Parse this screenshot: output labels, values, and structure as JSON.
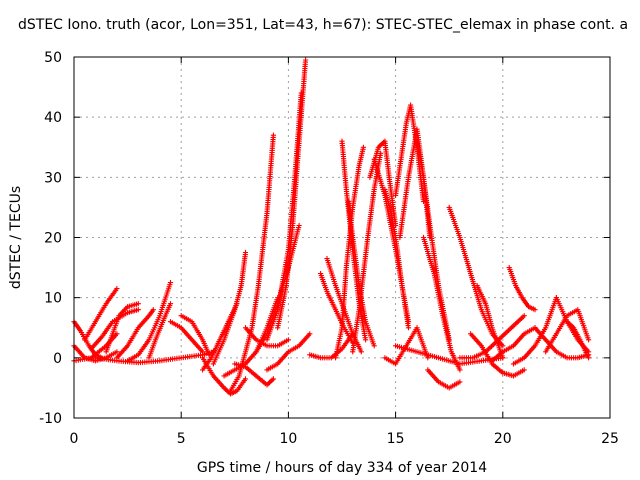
{
  "chart_data": {
    "type": "scatter",
    "title": "dSTEC Iono. truth (acor, Lon=351, Lat=43, h=67): STEC-STEC_elemax in phase cont. a",
    "xlabel": "GPS time / hours of day 334 of year 2014",
    "ylabel": "dSTEC  / TECUs",
    "xlim": [
      0,
      25
    ],
    "ylim": [
      -10,
      50
    ],
    "xticks": [
      "0",
      "5",
      "10",
      "15",
      "20",
      "25"
    ],
    "yticks": [
      "-10",
      "0",
      "10",
      "20",
      "30",
      "40",
      "50"
    ],
    "grid": true,
    "marker": "+",
    "color": "#ff0000",
    "series": [
      {
        "x": [
          0.0,
          0.3,
          0.7,
          1.0,
          1.3
        ],
        "y": [
          6.0,
          4.5,
          2.0,
          0.5,
          0.0
        ]
      },
      {
        "x": [
          0.0,
          0.5,
          1.0,
          1.5,
          2.0
        ],
        "y": [
          2.0,
          0.0,
          -0.5,
          0.0,
          1.0
        ]
      },
      {
        "x": [
          0.0,
          0.8,
          1.5,
          2.0
        ],
        "y": [
          -0.5,
          0.0,
          2.0,
          4.0
        ]
      },
      {
        "x": [
          0.5,
          1.0,
          1.5,
          2.0
        ],
        "y": [
          3.0,
          6.0,
          9.0,
          11.5
        ]
      },
      {
        "x": [
          0.8,
          1.3,
          1.8,
          2.5,
          3.0
        ],
        "y": [
          1.5,
          3.5,
          6.0,
          7.5,
          8.0
        ]
      },
      {
        "x": [
          1.5,
          1.8,
          2.1,
          2.5,
          3.0
        ],
        "y": [
          1.0,
          4.0,
          7.0,
          8.5,
          9.0
        ]
      },
      {
        "x": [
          2.0,
          2.5,
          3.0,
          3.5,
          3.7
        ],
        "y": [
          0.0,
          2.0,
          5.0,
          7.0,
          8.0
        ]
      },
      {
        "x": [
          2.5,
          3.0,
          3.5,
          4.0,
          4.5
        ],
        "y": [
          -0.5,
          0.5,
          3.0,
          7.0,
          12.5
        ]
      },
      {
        "x": [
          3.5,
          3.8,
          4.2,
          4.5
        ],
        "y": [
          0.0,
          3.0,
          6.5,
          9.0
        ]
      },
      {
        "x": [
          4.5,
          5.0,
          5.5,
          6.0
        ],
        "y": [
          6.0,
          5.0,
          3.0,
          1.0
        ]
      },
      {
        "x": [
          5.0,
          5.5,
          6.0,
          6.3
        ],
        "y": [
          7.0,
          6.0,
          3.0,
          0.5
        ]
      },
      {
        "x": [
          1.0,
          2.0,
          3.0,
          4.0,
          5.0,
          6.0,
          6.5
        ],
        "y": [
          0.0,
          -0.5,
          -0.8,
          -0.5,
          0.0,
          0.5,
          1.0
        ]
      },
      {
        "x": [
          6.0,
          6.5,
          7.0,
          7.3,
          7.6,
          8.0
        ],
        "y": [
          0.0,
          -3.0,
          -5.0,
          -6.0,
          -5.5,
          -3.5
        ]
      },
      {
        "x": [
          7.3,
          7.7,
          8.0,
          8.3,
          8.6,
          9.0,
          9.3
        ],
        "y": [
          -5.5,
          -3.0,
          1.0,
          5.0,
          12.0,
          24.0,
          37.0
        ]
      },
      {
        "x": [
          6.5,
          7.0,
          7.5,
          7.8,
          8.0
        ],
        "y": [
          -1.0,
          3.0,
          8.0,
          12.0,
          17.5
        ]
      },
      {
        "x": [
          6.0,
          6.4,
          6.8,
          7.2,
          7.6
        ],
        "y": [
          -2.0,
          0.0,
          3.0,
          6.0,
          9.0
        ]
      },
      {
        "x": [
          7.0,
          7.5,
          8.0,
          8.5,
          9.0,
          9.5
        ],
        "y": [
          -3.0,
          -2.0,
          -1.0,
          1.0,
          5.0,
          10.0
        ]
      },
      {
        "x": [
          7.5,
          8.0,
          8.5,
          9.0,
          9.3
        ],
        "y": [
          -1.0,
          -1.5,
          -3.0,
          -4.5,
          -3.5
        ]
      },
      {
        "x": [
          8.0,
          8.5,
          9.0,
          9.5,
          10.0
        ],
        "y": [
          5.0,
          3.0,
          2.0,
          2.0,
          3.0
        ]
      },
      {
        "x": [
          8.5,
          9.0,
          9.5,
          10.0,
          10.5
        ],
        "y": [
          1.0,
          4.0,
          9.0,
          15.0,
          22.0
        ]
      },
      {
        "x": [
          9.0,
          9.5,
          10.0,
          10.3,
          10.6
        ],
        "y": [
          3.0,
          8.0,
          18.0,
          30.0,
          44.0
        ]
      },
      {
        "x": [
          9.5,
          9.9,
          10.2,
          10.5,
          10.8
        ],
        "y": [
          5.0,
          12.0,
          22.0,
          36.0,
          49.5
        ]
      },
      {
        "x": [
          9.0,
          9.5,
          10.0,
          10.5,
          11.0
        ],
        "y": [
          -2.0,
          -1.0,
          1.0,
          2.0,
          4.0
        ]
      },
      {
        "x": [
          11.0,
          11.5,
          12.0,
          12.5,
          13.0
        ],
        "y": [
          0.5,
          0.0,
          0.0,
          1.5,
          4.0
        ]
      },
      {
        "x": [
          11.5,
          11.8,
          12.2,
          12.6,
          13.0
        ],
        "y": [
          14.0,
          11.0,
          8.0,
          5.0,
          2.5
        ]
      },
      {
        "x": [
          11.8,
          12.2,
          12.6,
          13.0,
          13.4
        ],
        "y": [
          16.5,
          12.0,
          8.0,
          4.0,
          1.0
        ]
      },
      {
        "x": [
          12.2,
          12.5,
          12.7,
          13.0,
          13.3,
          13.5
        ],
        "y": [
          0.0,
          5.0,
          15.0,
          25.0,
          32.0,
          35.0
        ]
      },
      {
        "x": [
          12.5,
          12.7,
          13.0,
          13.3,
          13.6
        ],
        "y": [
          36.0,
          28.0,
          18.0,
          9.0,
          3.0
        ]
      },
      {
        "x": [
          12.8,
          13.0,
          13.3,
          13.6,
          14.0
        ],
        "y": [
          26.0,
          20.0,
          12.0,
          6.0,
          2.0
        ]
      },
      {
        "x": [
          13.0,
          13.3,
          13.7,
          14.0,
          14.3
        ],
        "y": [
          1.0,
          8.0,
          20.0,
          28.0,
          34.0
        ]
      },
      {
        "x": [
          13.8,
          14.2,
          14.5,
          14.7,
          15.0
        ],
        "y": [
          30.0,
          35.0,
          36.0,
          30.0,
          22.0
        ]
      },
      {
        "x": [
          14.0,
          14.5,
          15.0,
          15.3,
          15.6
        ],
        "y": [
          33.0,
          27.0,
          18.0,
          12.0,
          6.0
        ]
      },
      {
        "x": [
          14.5,
          14.8,
          15.0,
          15.3,
          15.6
        ],
        "y": [
          28.0,
          24.0,
          20.0,
          12.0,
          5.0
        ]
      },
      {
        "x": [
          15.0,
          15.5,
          15.7,
          16.0,
          16.3
        ],
        "y": [
          27.0,
          39.0,
          42.0,
          35.0,
          26.0
        ]
      },
      {
        "x": [
          15.2,
          15.6,
          16.0,
          16.3,
          16.6
        ],
        "y": [
          20.0,
          30.0,
          38.0,
          30.0,
          20.0
        ]
      },
      {
        "x": [
          16.0,
          16.3,
          16.6,
          17.0,
          17.5
        ],
        "y": [
          36.0,
          30.0,
          22.0,
          12.0,
          3.0
        ]
      },
      {
        "x": [
          16.3,
          16.8,
          17.2,
          17.6,
          18.0
        ],
        "y": [
          20.0,
          14.0,
          7.0,
          1.0,
          -2.0
        ]
      },
      {
        "x": [
          16.5,
          17.0,
          17.5,
          18.0
        ],
        "y": [
          -2.0,
          -4.0,
          -5.0,
          -4.0
        ]
      },
      {
        "x": [
          14.5,
          15.0,
          15.5,
          16.0,
          16.5
        ],
        "y": [
          0.0,
          -1.0,
          2.0,
          5.0,
          0.0
        ]
      },
      {
        "x": [
          15.0,
          16.0,
          17.0,
          18.0,
          19.0,
          20.0
        ],
        "y": [
          2.0,
          1.0,
          0.0,
          -1.0,
          -0.5,
          0.0
        ]
      },
      {
        "x": [
          17.5,
          18.0,
          18.5,
          19.0,
          19.5,
          20.0
        ],
        "y": [
          25.0,
          20.0,
          14.0,
          8.0,
          4.0,
          2.0
        ]
      },
      {
        "x": [
          18.0,
          18.6,
          19.2,
          19.8,
          20.4,
          21.0
        ],
        "y": [
          0.0,
          0.0,
          1.0,
          3.0,
          5.0,
          7.0
        ]
      },
      {
        "x": [
          18.5,
          19.0,
          19.5,
          20.0,
          20.5,
          21.0
        ],
        "y": [
          4.0,
          2.0,
          -1.0,
          -2.5,
          -3.0,
          -2.0
        ]
      },
      {
        "x": [
          18.8,
          19.2,
          19.5,
          19.8,
          20.0
        ],
        "y": [
          12.0,
          9.0,
          5.0,
          2.0,
          0.0
        ]
      },
      {
        "x": [
          20.3,
          20.6,
          20.9,
          21.2,
          21.5
        ],
        "y": [
          15.0,
          12.0,
          10.0,
          8.5,
          8.0
        ]
      },
      {
        "x": [
          19.5,
          20.0,
          20.5,
          21.0,
          21.5
        ],
        "y": [
          -0.5,
          1.0,
          2.0,
          4.0,
          5.0
        ]
      },
      {
        "x": [
          20.5,
          21.0,
          21.5,
          22.0,
          22.5
        ],
        "y": [
          -1.0,
          0.0,
          2.0,
          5.0,
          10.0
        ]
      },
      {
        "x": [
          22.5,
          23.0,
          23.5,
          24.0
        ],
        "y": [
          10.0,
          6.0,
          3.0,
          1.0
        ]
      },
      {
        "x": [
          21.5,
          22.0,
          22.5,
          23.0,
          23.5,
          24.0
        ],
        "y": [
          5.0,
          3.0,
          1.0,
          0.0,
          0.0,
          0.5
        ]
      },
      {
        "x": [
          22.0,
          22.5,
          23.0,
          23.5,
          24.0
        ],
        "y": [
          1.0,
          4.0,
          7.0,
          8.0,
          3.0
        ]
      },
      {
        "x": [
          23.0,
          23.3,
          23.6,
          24.0
        ],
        "y": [
          6.0,
          5.0,
          3.0,
          0.0
        ]
      }
    ]
  }
}
